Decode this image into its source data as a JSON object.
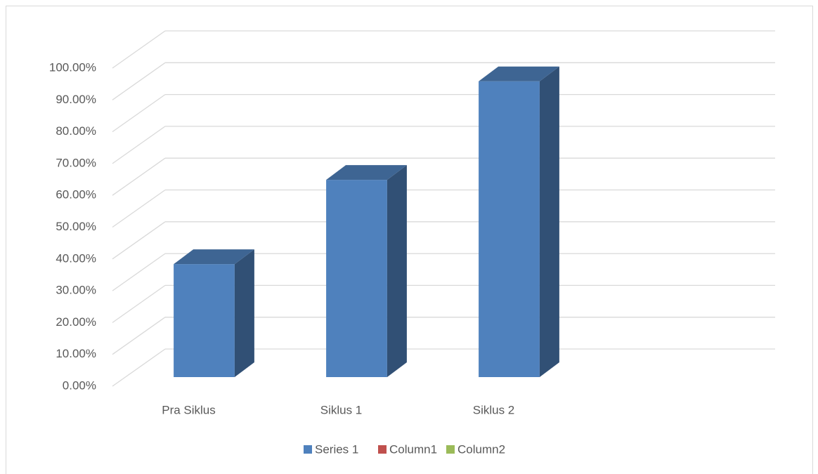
{
  "chart_data": {
    "type": "bar3d",
    "categories": [
      "Pra Siklus",
      "Siklus 1",
      "Siklus 2",
      null
    ],
    "series": [
      {
        "name": "Series 1",
        "color": "#4f81bd",
        "values": [
          35.5,
          62,
          93,
          null
        ]
      },
      {
        "name": "Column1",
        "color": "#c0504d",
        "values": [
          null,
          null,
          null,
          null
        ]
      },
      {
        "name": "Column2",
        "color": "#9bbb59",
        "values": [
          null,
          null,
          null,
          null
        ]
      }
    ],
    "ylim": [
      0,
      100
    ],
    "yticks": [
      {
        "value": 0,
        "label": "0.00%"
      },
      {
        "value": 10,
        "label": "10.00%"
      },
      {
        "value": 20,
        "label": "20.00%"
      },
      {
        "value": 30,
        "label": "30.00%"
      },
      {
        "value": 40,
        "label": "40.00%"
      },
      {
        "value": 50,
        "label": "50.00%"
      },
      {
        "value": 60,
        "label": "60.00%"
      },
      {
        "value": 70,
        "label": "70.00%"
      },
      {
        "value": 80,
        "label": "80.00%"
      },
      {
        "value": 90,
        "label": "90.00%"
      },
      {
        "value": 100,
        "label": "100.00%"
      }
    ],
    "grid": true,
    "legend": "bottom"
  }
}
